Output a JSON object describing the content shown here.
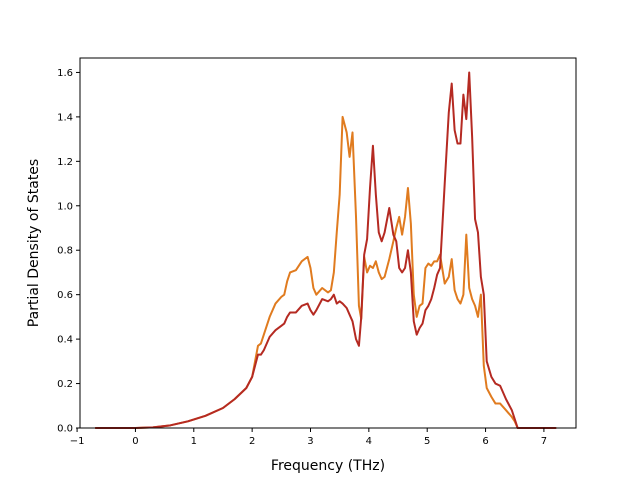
{
  "chart_data": {
    "type": "line",
    "title": "",
    "xlabel": "Frequency (THz)",
    "ylabel": "Partial Density of States",
    "xlim": [
      -0.95,
      7.55
    ],
    "ylim": [
      0.0,
      1.665
    ],
    "xticks": [
      -1,
      0,
      1,
      2,
      3,
      4,
      5,
      6,
      7
    ],
    "xtick_labels": [
      "−1",
      "0",
      "1",
      "2",
      "3",
      "4",
      "5",
      "6",
      "7"
    ],
    "yticks": [
      0.0,
      0.2,
      0.4,
      0.6,
      0.8,
      1.0,
      1.2,
      1.4,
      1.6
    ],
    "ytick_labels": [
      "0.0",
      "0.2",
      "0.4",
      "0.6",
      "0.8",
      "1.0",
      "1.2",
      "1.4",
      "1.6"
    ],
    "grid": false,
    "legend": "none",
    "series": [
      {
        "color": "#e07b1f",
        "points": [
          [
            -0.68,
            0.0
          ],
          [
            0.0,
            0.0
          ],
          [
            0.3,
            0.003
          ],
          [
            0.6,
            0.012
          ],
          [
            0.9,
            0.03
          ],
          [
            1.2,
            0.055
          ],
          [
            1.5,
            0.09
          ],
          [
            1.7,
            0.13
          ],
          [
            1.9,
            0.18
          ],
          [
            2.0,
            0.23
          ],
          [
            2.05,
            0.3
          ],
          [
            2.1,
            0.37
          ],
          [
            2.15,
            0.38
          ],
          [
            2.2,
            0.42
          ],
          [
            2.3,
            0.5
          ],
          [
            2.4,
            0.56
          ],
          [
            2.5,
            0.59
          ],
          [
            2.55,
            0.6
          ],
          [
            2.6,
            0.66
          ],
          [
            2.65,
            0.7
          ],
          [
            2.75,
            0.71
          ],
          [
            2.85,
            0.75
          ],
          [
            2.95,
            0.77
          ],
          [
            3.0,
            0.72
          ],
          [
            3.05,
            0.63
          ],
          [
            3.1,
            0.6
          ],
          [
            3.2,
            0.63
          ],
          [
            3.3,
            0.61
          ],
          [
            3.35,
            0.62
          ],
          [
            3.4,
            0.7
          ],
          [
            3.45,
            0.88
          ],
          [
            3.5,
            1.05
          ],
          [
            3.55,
            1.4
          ],
          [
            3.62,
            1.33
          ],
          [
            3.67,
            1.22
          ],
          [
            3.72,
            1.33
          ],
          [
            3.78,
            0.95
          ],
          [
            3.83,
            0.55
          ],
          [
            3.87,
            0.49
          ],
          [
            3.92,
            0.77
          ],
          [
            3.97,
            0.7
          ],
          [
            4.02,
            0.73
          ],
          [
            4.07,
            0.72
          ],
          [
            4.12,
            0.75
          ],
          [
            4.17,
            0.7
          ],
          [
            4.22,
            0.67
          ],
          [
            4.27,
            0.68
          ],
          [
            4.35,
            0.76
          ],
          [
            4.42,
            0.84
          ],
          [
            4.47,
            0.9
          ],
          [
            4.52,
            0.95
          ],
          [
            4.57,
            0.87
          ],
          [
            4.62,
            0.95
          ],
          [
            4.67,
            1.08
          ],
          [
            4.72,
            0.92
          ],
          [
            4.77,
            0.6
          ],
          [
            4.82,
            0.5
          ],
          [
            4.87,
            0.55
          ],
          [
            4.92,
            0.56
          ],
          [
            4.97,
            0.72
          ],
          [
            5.02,
            0.74
          ],
          [
            5.07,
            0.73
          ],
          [
            5.12,
            0.75
          ],
          [
            5.17,
            0.75
          ],
          [
            5.22,
            0.78
          ],
          [
            5.3,
            0.65
          ],
          [
            5.37,
            0.68
          ],
          [
            5.42,
            0.76
          ],
          [
            5.47,
            0.62
          ],
          [
            5.52,
            0.58
          ],
          [
            5.57,
            0.56
          ],
          [
            5.62,
            0.6
          ],
          [
            5.67,
            0.87
          ],
          [
            5.72,
            0.63
          ],
          [
            5.77,
            0.58
          ],
          [
            5.82,
            0.55
          ],
          [
            5.87,
            0.5
          ],
          [
            5.92,
            0.6
          ],
          [
            5.97,
            0.28
          ],
          [
            6.02,
            0.18
          ],
          [
            6.1,
            0.14
          ],
          [
            6.17,
            0.11
          ],
          [
            6.25,
            0.11
          ],
          [
            6.35,
            0.08
          ],
          [
            6.45,
            0.05
          ],
          [
            6.5,
            0.03
          ],
          [
            6.55,
            0.0
          ],
          [
            6.6,
            0.0
          ],
          [
            7.2,
            0.0
          ]
        ]
      },
      {
        "color": "#b52a22",
        "points": [
          [
            -0.68,
            0.0
          ],
          [
            0.0,
            0.0
          ],
          [
            0.3,
            0.003
          ],
          [
            0.6,
            0.012
          ],
          [
            0.9,
            0.03
          ],
          [
            1.2,
            0.055
          ],
          [
            1.5,
            0.09
          ],
          [
            1.7,
            0.13
          ],
          [
            1.9,
            0.18
          ],
          [
            2.0,
            0.23
          ],
          [
            2.05,
            0.28
          ],
          [
            2.1,
            0.33
          ],
          [
            2.15,
            0.33
          ],
          [
            2.2,
            0.35
          ],
          [
            2.3,
            0.41
          ],
          [
            2.4,
            0.44
          ],
          [
            2.5,
            0.46
          ],
          [
            2.55,
            0.47
          ],
          [
            2.6,
            0.5
          ],
          [
            2.65,
            0.52
          ],
          [
            2.75,
            0.52
          ],
          [
            2.85,
            0.55
          ],
          [
            2.95,
            0.56
          ],
          [
            3.0,
            0.53
          ],
          [
            3.05,
            0.51
          ],
          [
            3.1,
            0.53
          ],
          [
            3.2,
            0.58
          ],
          [
            3.3,
            0.57
          ],
          [
            3.35,
            0.58
          ],
          [
            3.4,
            0.6
          ],
          [
            3.45,
            0.56
          ],
          [
            3.5,
            0.57
          ],
          [
            3.55,
            0.56
          ],
          [
            3.62,
            0.54
          ],
          [
            3.67,
            0.51
          ],
          [
            3.72,
            0.48
          ],
          [
            3.78,
            0.4
          ],
          [
            3.83,
            0.37
          ],
          [
            3.87,
            0.5
          ],
          [
            3.92,
            0.78
          ],
          [
            3.97,
            0.85
          ],
          [
            4.02,
            1.08
          ],
          [
            4.07,
            1.27
          ],
          [
            4.12,
            1.05
          ],
          [
            4.17,
            0.88
          ],
          [
            4.22,
            0.84
          ],
          [
            4.27,
            0.88
          ],
          [
            4.35,
            0.99
          ],
          [
            4.42,
            0.87
          ],
          [
            4.47,
            0.84
          ],
          [
            4.52,
            0.72
          ],
          [
            4.57,
            0.7
          ],
          [
            4.62,
            0.72
          ],
          [
            4.67,
            0.8
          ],
          [
            4.72,
            0.7
          ],
          [
            4.77,
            0.48
          ],
          [
            4.82,
            0.42
          ],
          [
            4.87,
            0.45
          ],
          [
            4.92,
            0.47
          ],
          [
            4.97,
            0.53
          ],
          [
            5.02,
            0.55
          ],
          [
            5.07,
            0.58
          ],
          [
            5.12,
            0.63
          ],
          [
            5.17,
            0.69
          ],
          [
            5.22,
            0.72
          ],
          [
            5.3,
            1.1
          ],
          [
            5.37,
            1.42
          ],
          [
            5.42,
            1.55
          ],
          [
            5.47,
            1.34
          ],
          [
            5.52,
            1.28
          ],
          [
            5.57,
            1.28
          ],
          [
            5.62,
            1.5
          ],
          [
            5.67,
            1.39
          ],
          [
            5.72,
            1.6
          ],
          [
            5.77,
            1.31
          ],
          [
            5.82,
            0.94
          ],
          [
            5.87,
            0.88
          ],
          [
            5.92,
            0.68
          ],
          [
            5.97,
            0.6
          ],
          [
            6.02,
            0.3
          ],
          [
            6.1,
            0.23
          ],
          [
            6.17,
            0.2
          ],
          [
            6.25,
            0.19
          ],
          [
            6.35,
            0.13
          ],
          [
            6.45,
            0.08
          ],
          [
            6.5,
            0.04
          ],
          [
            6.55,
            0.0
          ],
          [
            6.6,
            0.0
          ],
          [
            7.2,
            0.0
          ]
        ]
      }
    ]
  }
}
